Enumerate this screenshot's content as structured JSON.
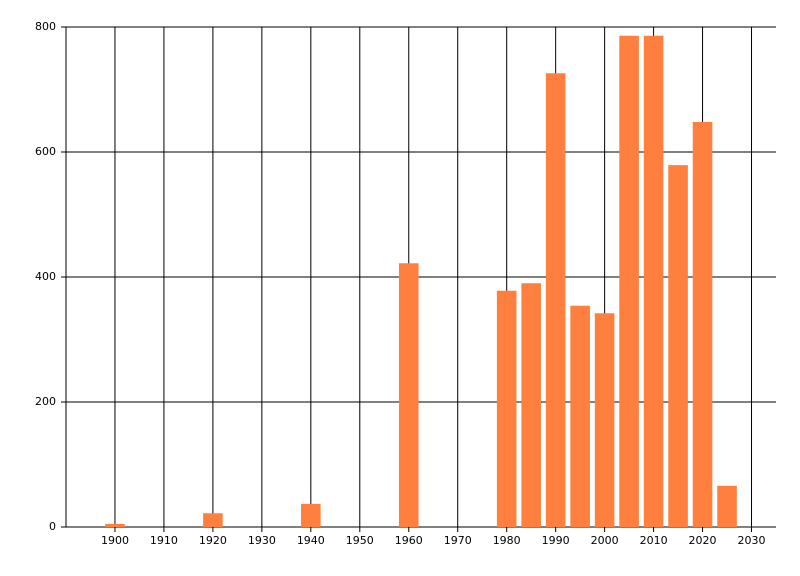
{
  "chart_data": {
    "type": "bar",
    "x": [
      1900,
      1920,
      1940,
      1960,
      1980,
      1985,
      1990,
      1995,
      2000,
      2005,
      2010,
      2015,
      2020,
      2025
    ],
    "values": [
      5,
      22,
      37,
      422,
      378,
      390,
      726,
      354,
      342,
      786,
      786,
      579,
      648,
      66
    ],
    "color": "#ff7f3f",
    "xlim": [
      1890,
      2035
    ],
    "xticks": [
      1900,
      1910,
      1920,
      1930,
      1940,
      1950,
      1960,
      1970,
      1980,
      1990,
      2000,
      2010,
      2020,
      2030
    ],
    "ylim": [
      0,
      800
    ],
    "yticks": [
      0,
      200,
      400,
      600,
      800
    ],
    "grid": true
  }
}
